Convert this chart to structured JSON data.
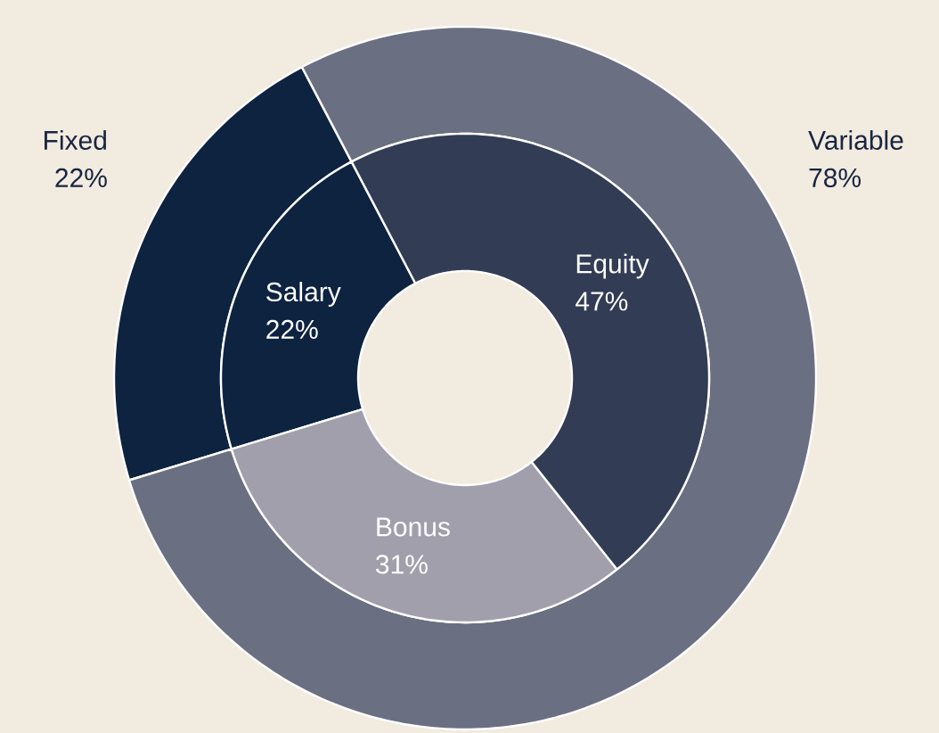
{
  "chart_data": [
    {
      "type": "donut",
      "categories": [
        "Fixed",
        "Variable"
      ],
      "values": [
        22,
        78
      ],
      "value_labels": [
        "22%",
        "78%"
      ],
      "colors": [
        "#0d2340",
        "#6b6f82"
      ]
    },
    {
      "type": "donut",
      "categories": [
        "Salary",
        "Bonus",
        "Equity"
      ],
      "values": [
        22,
        31,
        47
      ],
      "value_labels": [
        "22%",
        "31%",
        "47%"
      ],
      "colors": [
        "#0d2340",
        "#a19fac",
        "#333c55"
      ]
    }
  ]
}
